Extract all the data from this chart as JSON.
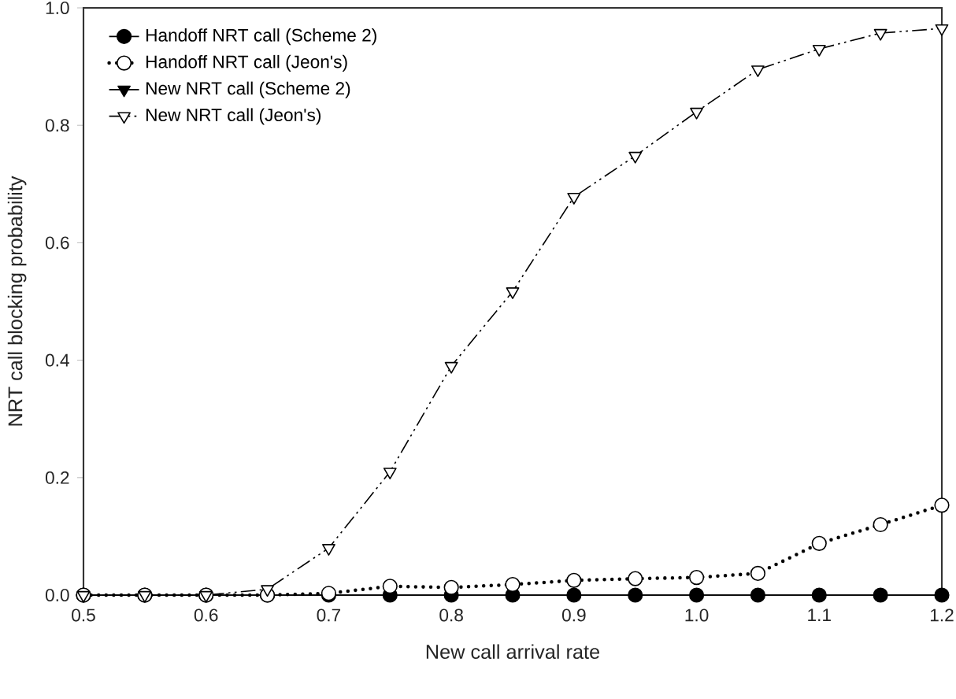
{
  "chart_data": {
    "type": "line",
    "xlabel": "New call arrival rate",
    "ylabel": "NRT call blocking probability",
    "x": [
      0.5,
      0.55,
      0.6,
      0.65,
      0.7,
      0.75,
      0.8,
      0.85,
      0.9,
      0.95,
      1.0,
      1.05,
      1.1,
      1.15,
      1.2
    ],
    "series": [
      {
        "name": "Handoff NRT call (Scheme 2)",
        "color": "#000000",
        "marker": "circle",
        "line_style": "solid",
        "values": [
          0,
          0,
          0,
          0,
          0,
          0,
          0,
          0,
          0,
          0,
          0,
          0,
          0,
          0,
          0
        ]
      },
      {
        "name": "Handoff NRT call (Jeon's)",
        "color": "#000000",
        "marker": "circle",
        "line_style": "dotted",
        "values": [
          0,
          0,
          0,
          0,
          0.003,
          0.015,
          0.013,
          0.018,
          0.025,
          0.028,
          0.03,
          0.037,
          0.088,
          0.12,
          0.153
        ]
      },
      {
        "name": "New NRT call (Scheme 2)",
        "color": "#000000",
        "marker": "triangle",
        "line_style": "solid",
        "values": [
          null,
          null,
          null,
          null,
          null,
          null,
          null,
          null,
          null,
          null,
          null,
          null,
          null,
          null,
          null
        ]
      },
      {
        "name": "New NRT call (Jeon's)",
        "color": "#000000",
        "marker": "triangle",
        "line_style": "dashed",
        "values": [
          0,
          0,
          0,
          0.01,
          0.08,
          0.21,
          0.39,
          0.517,
          0.678,
          0.748,
          0.823,
          0.895,
          0.93,
          0.957,
          0.965
        ]
      }
    ],
    "xlim": [
      0.5,
      1.2
    ],
    "ylim": [
      0,
      1
    ],
    "xticks": [
      0.5,
      0.6,
      0.7,
      0.8,
      0.9,
      {
        "value": 1,
        "label": "1.0"
      },
      1.1,
      1.2
    ],
    "yticks": [
      {
        "value": 0,
        "label": "0.0"
      },
      0.2,
      0.4,
      0.6,
      0.8,
      {
        "value": 1,
        "label": "1.0"
      }
    ],
    "grid": false,
    "legend": "top left"
  }
}
